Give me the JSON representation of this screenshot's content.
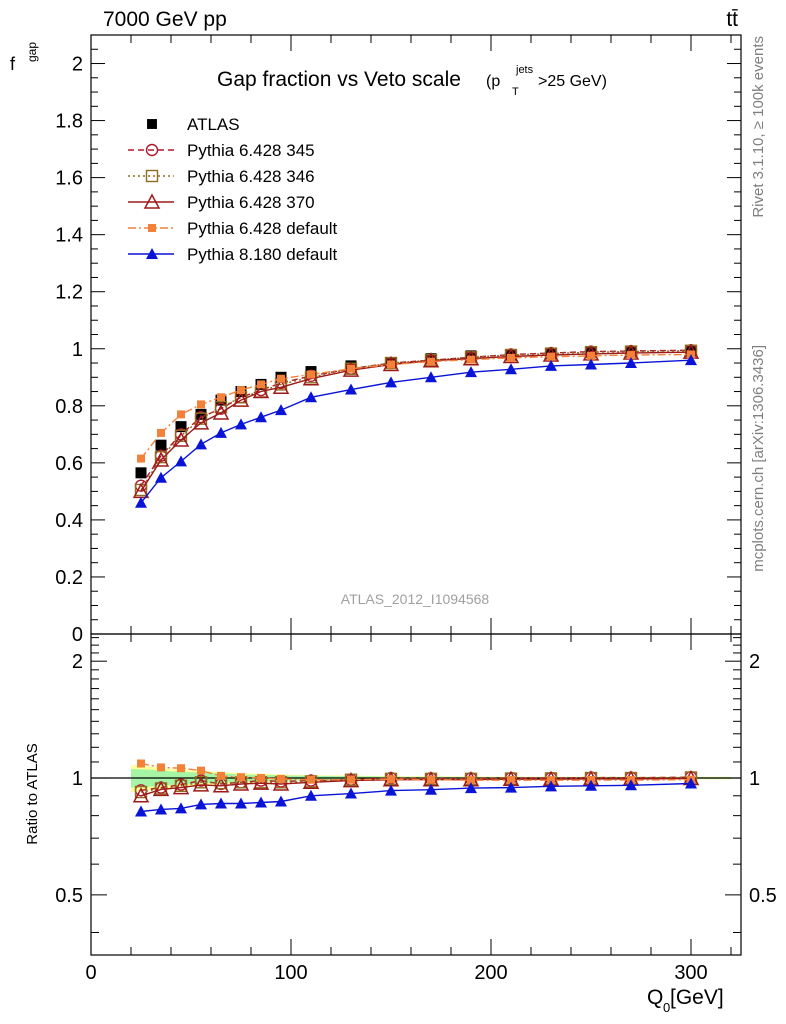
{
  "header": {
    "left": "7000 GeV pp",
    "right": "tt̄"
  },
  "side_labels": {
    "rivet": "Rivet 3.1.10, ≥ 100k events",
    "mcplots": "mcplots.cern.ch [arXiv:1306.3436]"
  },
  "watermark": "ATLAS_2012_I1094568",
  "colors": {
    "atlas": "#000000",
    "p345": "#b2182b",
    "p346": "#8c6d1f",
    "p370": "#9e1a1a",
    "p6def": "#f4813a",
    "p8def": "#0a14d6",
    "band_inner": "#a6f5a6",
    "band_outer": "#ffff99"
  },
  "chart_data": [
    {
      "type": "line",
      "title": "Gap fraction vs Veto scale",
      "title_suffix": {
        "pre": "(p",
        "sup": "jets",
        "sub": "T",
        "post": ">25 GeV)"
      },
      "ylabel": {
        "main": "f",
        "sub": "gap"
      },
      "xlim": [
        0,
        325
      ],
      "ylim": [
        0,
        2.1
      ],
      "y_ticks": [
        "0",
        "0.2",
        "0.4",
        "0.6",
        "0.8",
        "1",
        "1.2",
        "1.4",
        "1.6",
        "1.8",
        "2"
      ],
      "legend_position": "top-left",
      "x": [
        25,
        35,
        45,
        55,
        65,
        75,
        85,
        95,
        110,
        130,
        150,
        170,
        190,
        210,
        230,
        250,
        270,
        300
      ],
      "series": [
        {
          "name": "ATLAS",
          "key": "atlas",
          "marker": "square",
          "line": "none",
          "values": [
            0.565,
            0.662,
            0.727,
            0.77,
            0.82,
            0.85,
            0.875,
            0.9,
            0.92,
            0.94,
            0.95,
            0.965,
            0.975,
            0.98,
            0.985,
            0.987,
            0.99,
            0.99
          ]
        },
        {
          "name": "Pythia 6.428 345",
          "key": "p345",
          "marker": "circle-open",
          "line": "dashed",
          "values": [
            0.52,
            0.625,
            0.7,
            0.76,
            0.79,
            0.83,
            0.855,
            0.88,
            0.905,
            0.93,
            0.95,
            0.96,
            0.97,
            0.98,
            0.985,
            0.99,
            0.992,
            0.995
          ]
        },
        {
          "name": "Pythia 6.428 346",
          "key": "p346",
          "marker": "square-open",
          "line": "dotted",
          "values": [
            0.505,
            0.62,
            0.695,
            0.755,
            0.795,
            0.83,
            0.85,
            0.875,
            0.9,
            0.93,
            0.95,
            0.96,
            0.97,
            0.978,
            0.983,
            0.988,
            0.99,
            0.993
          ]
        },
        {
          "name": "Pythia 6.428 370",
          "key": "p370",
          "marker": "triangle-open",
          "line": "solid",
          "values": [
            0.5,
            0.61,
            0.68,
            0.74,
            0.775,
            0.82,
            0.85,
            0.865,
            0.895,
            0.925,
            0.945,
            0.958,
            0.965,
            0.973,
            0.978,
            0.982,
            0.985,
            0.988
          ]
        },
        {
          "name": "Pythia 6.428 default",
          "key": "p6def",
          "marker": "square-small",
          "line": "dashdot",
          "values": [
            0.615,
            0.705,
            0.77,
            0.805,
            0.83,
            0.855,
            0.875,
            0.895,
            0.91,
            0.93,
            0.945,
            0.955,
            0.962,
            0.968,
            0.972,
            0.975,
            0.978,
            0.98
          ]
        },
        {
          "name": "Pythia 8.180 default",
          "key": "p8def",
          "marker": "triangle",
          "line": "solid",
          "values": [
            0.46,
            0.548,
            0.605,
            0.665,
            0.705,
            0.735,
            0.76,
            0.785,
            0.83,
            0.857,
            0.882,
            0.9,
            0.918,
            0.928,
            0.94,
            0.945,
            0.95,
            0.96
          ]
        }
      ]
    },
    {
      "type": "line",
      "xlabel": {
        "main": "Q",
        "sub": "0",
        "post": " [GeV]"
      },
      "ylabel": "Ratio to ATLAS",
      "xlim": [
        0,
        325
      ],
      "ylim": [
        0.35,
        2.35
      ],
      "y_scale": "log",
      "x_ticks": [
        "0",
        "100",
        "200",
        "300"
      ],
      "y_ticks": [
        "0.5",
        "1",
        "2"
      ],
      "band": {
        "x": [
          20,
          30,
          40,
          50,
          60,
          70,
          80,
          90,
          100,
          120,
          140,
          160,
          180,
          200,
          220,
          240,
          260,
          280,
          320
        ],
        "inner": [
          0.055,
          0.05,
          0.04,
          0.035,
          0.03,
          0.025,
          0.02,
          0.018,
          0.015,
          0.012,
          0.01,
          0.008,
          0.007,
          0.006,
          0.005,
          0.005,
          0.005,
          0.005,
          0.005
        ],
        "outer": [
          0.08,
          0.07,
          0.055,
          0.045,
          0.04,
          0.033,
          0.028,
          0.024,
          0.02,
          0.016,
          0.013,
          0.011,
          0.01,
          0.009,
          0.008,
          0.008,
          0.008,
          0.008,
          0.008
        ]
      },
      "x": [
        25,
        35,
        45,
        55,
        65,
        75,
        85,
        95,
        110,
        130,
        150,
        170,
        190,
        210,
        230,
        250,
        270,
        300
      ],
      "series": [
        {
          "name": "ATLAS",
          "key": "atlas",
          "marker": "none",
          "line": "solid",
          "values": [
            1,
            1,
            1,
            1,
            1,
            1,
            1,
            1,
            1,
            1,
            1,
            1,
            1,
            1,
            1,
            1,
            1,
            1
          ]
        },
        {
          "name": "Pythia 6.428 345",
          "key": "p345",
          "marker": "circle-open",
          "line": "dashed",
          "values": [
            0.93,
            0.945,
            0.962,
            0.985,
            0.965,
            0.975,
            0.985,
            0.98,
            0.985,
            0.99,
            1.0,
            0.998,
            0.998,
            1.0,
            1.0,
            1.003,
            1.002,
            1.005
          ]
        },
        {
          "name": "Pythia 6.428 346",
          "key": "p346",
          "marker": "square-open",
          "line": "dotted",
          "values": [
            0.92,
            0.94,
            0.955,
            0.975,
            0.97,
            0.975,
            0.975,
            0.975,
            0.98,
            0.99,
            0.995,
            0.995,
            0.995,
            0.997,
            0.998,
            1.0,
            1.0,
            1.003
          ]
        },
        {
          "name": "Pythia 6.428 370",
          "key": "p370",
          "marker": "triangle-open",
          "line": "solid",
          "values": [
            0.9,
            0.935,
            0.945,
            0.96,
            0.955,
            0.965,
            0.97,
            0.965,
            0.975,
            0.985,
            0.99,
            0.99,
            0.99,
            0.993,
            0.993,
            0.995,
            0.995,
            0.997
          ]
        },
        {
          "name": "Pythia 6.428 default",
          "key": "p6def",
          "marker": "square-small",
          "line": "dashdot",
          "values": [
            1.09,
            1.065,
            1.06,
            1.045,
            1.013,
            1.005,
            1.0,
            0.995,
            0.99,
            0.99,
            0.993,
            0.99,
            0.987,
            0.988,
            0.987,
            0.988,
            0.988,
            0.99
          ]
        },
        {
          "name": "Pythia 8.180 default",
          "key": "p8def",
          "marker": "triangle",
          "line": "solid",
          "values": [
            0.82,
            0.83,
            0.835,
            0.855,
            0.86,
            0.86,
            0.865,
            0.87,
            0.9,
            0.912,
            0.928,
            0.933,
            0.942,
            0.945,
            0.952,
            0.955,
            0.958,
            0.968
          ]
        }
      ]
    }
  ]
}
